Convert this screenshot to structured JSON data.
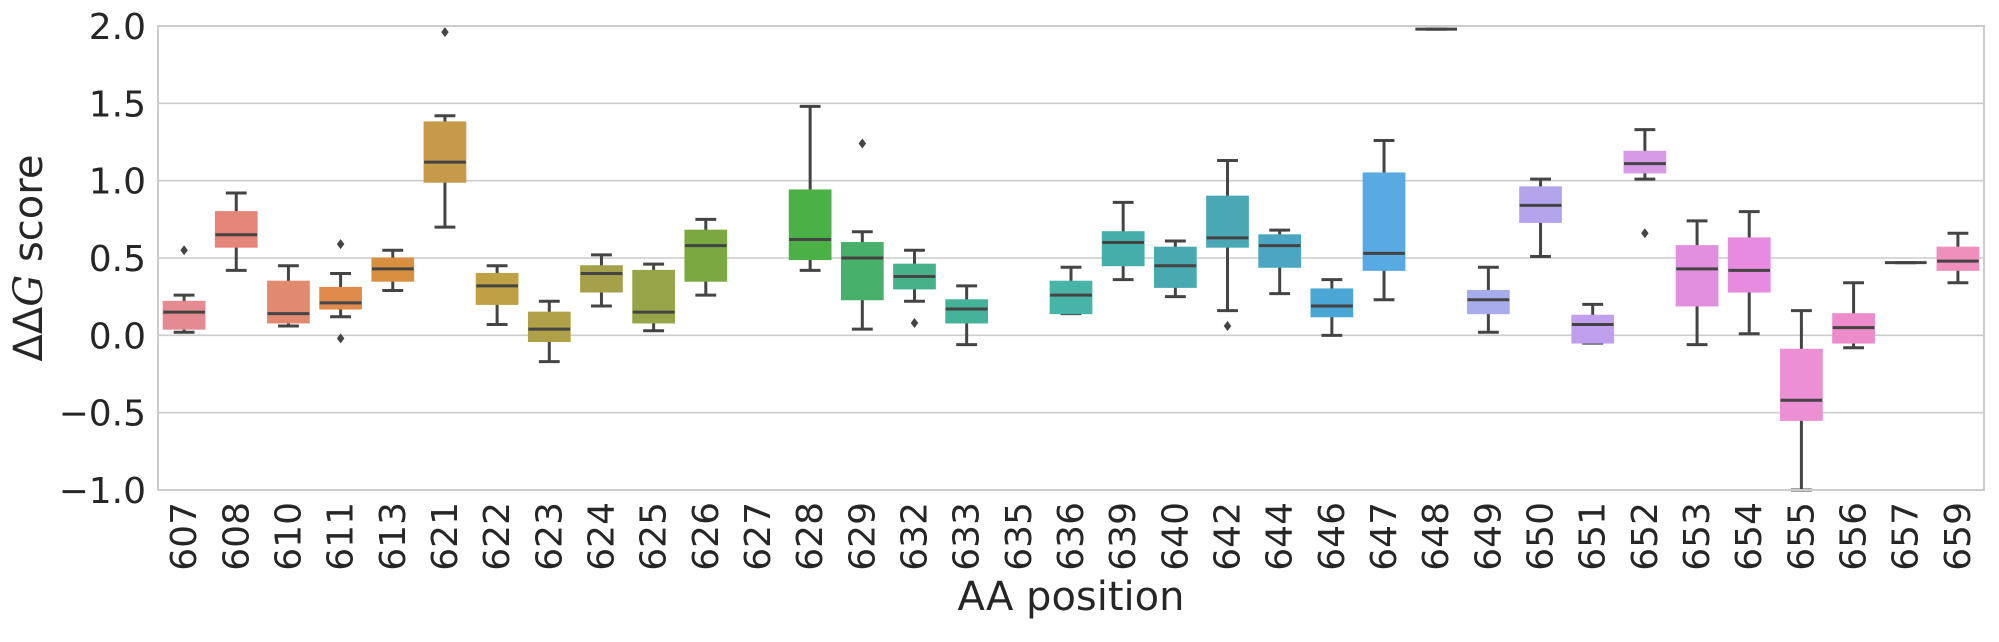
{
  "chart_data": {
    "type": "box",
    "title": "",
    "xlabel": "AA position",
    "ylabel": "ΔΔG score",
    "ylim": [
      -1.0,
      2.0
    ],
    "yticks": [
      2.0,
      1.5,
      1.0,
      0.5,
      0.0,
      -0.5,
      -1.0
    ],
    "ytick_labels": [
      "2.0",
      "1.5",
      "1.0",
      "0.5",
      "0.0",
      "−0.5",
      "−1.0"
    ],
    "grid": true,
    "categories": [
      "607",
      "608",
      "610",
      "611",
      "613",
      "621",
      "622",
      "623",
      "624",
      "625",
      "626",
      "627",
      "628",
      "629",
      "632",
      "633",
      "635",
      "636",
      "639",
      "640",
      "642",
      "644",
      "646",
      "647",
      "648",
      "649",
      "650",
      "651",
      "652",
      "653",
      "654",
      "655",
      "656",
      "657",
      "659"
    ],
    "boxes": [
      {
        "q1": 0.04,
        "median": 0.15,
        "q3": 0.22,
        "whislo": 0.02,
        "whishi": 0.26,
        "fliers": [
          0.55
        ],
        "color": "#e58a90"
      },
      {
        "q1": 0.57,
        "median": 0.65,
        "q3": 0.8,
        "whislo": 0.42,
        "whishi": 0.92,
        "fliers": [],
        "color": "#e5857a"
      },
      {
        "q1": 0.08,
        "median": 0.14,
        "q3": 0.35,
        "whislo": 0.06,
        "whishi": 0.45,
        "fliers": [],
        "color": "#e28a70"
      },
      {
        "q1": 0.17,
        "median": 0.21,
        "q3": 0.31,
        "whislo": 0.12,
        "whishi": 0.4,
        "fliers": [
          0.59,
          -0.02
        ],
        "color": "#e08a4c"
      },
      {
        "q1": 0.35,
        "median": 0.43,
        "q3": 0.5,
        "whislo": 0.29,
        "whishi": 0.55,
        "fliers": [],
        "color": "#d9903e"
      },
      {
        "q1": 0.99,
        "median": 1.12,
        "q3": 1.38,
        "whislo": 0.7,
        "whishi": 1.42,
        "fliers": [
          1.96
        ],
        "color": "#c69a4a"
      },
      {
        "q1": 0.2,
        "median": 0.32,
        "q3": 0.4,
        "whislo": 0.07,
        "whishi": 0.45,
        "fliers": [],
        "color": "#bfa045"
      },
      {
        "q1": -0.04,
        "median": 0.04,
        "q3": 0.15,
        "whislo": -0.17,
        "whishi": 0.22,
        "fliers": [],
        "color": "#b0a048"
      },
      {
        "q1": 0.28,
        "median": 0.4,
        "q3": 0.45,
        "whislo": 0.19,
        "whishi": 0.52,
        "fliers": [],
        "color": "#a6a04a"
      },
      {
        "q1": 0.08,
        "median": 0.15,
        "q3": 0.42,
        "whislo": 0.03,
        "whishi": 0.46,
        "fliers": [],
        "color": "#97a448"
      },
      {
        "q1": 0.35,
        "median": 0.58,
        "q3": 0.68,
        "whislo": 0.26,
        "whishi": 0.75,
        "fliers": [],
        "color": "#7ca841"
      },
      {
        "q1": null,
        "median": null,
        "q3": null,
        "whislo": null,
        "whishi": null,
        "fliers": [],
        "color": "#5fad45"
      },
      {
        "q1": 0.49,
        "median": 0.62,
        "q3": 0.94,
        "whislo": 0.42,
        "whishi": 1.48,
        "fliers": [],
        "color": "#4bb146"
      },
      {
        "q1": 0.23,
        "median": 0.5,
        "q3": 0.6,
        "whislo": 0.04,
        "whishi": 0.67,
        "fliers": [
          1.24
        ],
        "color": "#47b16c"
      },
      {
        "q1": 0.3,
        "median": 0.38,
        "q3": 0.46,
        "whislo": 0.22,
        "whishi": 0.55,
        "fliers": [
          0.08
        ],
        "color": "#47b28a"
      },
      {
        "q1": 0.08,
        "median": 0.17,
        "q3": 0.23,
        "whislo": -0.06,
        "whishi": 0.32,
        "fliers": [],
        "color": "#45b39a"
      },
      {
        "q1": null,
        "median": null,
        "q3": null,
        "whislo": null,
        "whishi": null,
        "fliers": [],
        "color": "#46b3a5"
      },
      {
        "q1": 0.14,
        "median": 0.26,
        "q3": 0.35,
        "whislo": 0.14,
        "whishi": 0.44,
        "fliers": [],
        "color": "#47b4a7"
      },
      {
        "q1": 0.45,
        "median": 0.6,
        "q3": 0.67,
        "whislo": 0.36,
        "whishi": 0.86,
        "fliers": [],
        "color": "#45aeab"
      },
      {
        "q1": 0.31,
        "median": 0.45,
        "q3": 0.57,
        "whislo": 0.25,
        "whishi": 0.61,
        "fliers": [],
        "color": "#48aab0"
      },
      {
        "q1": 0.57,
        "median": 0.63,
        "q3": 0.9,
        "whislo": 0.16,
        "whishi": 1.13,
        "fliers": [
          0.06
        ],
        "color": "#4aa8b5"
      },
      {
        "q1": 0.44,
        "median": 0.58,
        "q3": 0.65,
        "whislo": 0.27,
        "whishi": 0.68,
        "fliers": [],
        "color": "#4aa6c2"
      },
      {
        "q1": 0.12,
        "median": 0.19,
        "q3": 0.3,
        "whislo": 0.0,
        "whishi": 0.36,
        "fliers": [],
        "color": "#4aa6d5"
      },
      {
        "q1": 0.42,
        "median": 0.53,
        "q3": 1.05,
        "whislo": 0.23,
        "whishi": 1.26,
        "fliers": [],
        "color": "#59a9e3"
      },
      {
        "q1": 1.98,
        "median": 1.98,
        "q3": 1.98,
        "whislo": 1.98,
        "whishi": 1.98,
        "fliers": [],
        "color": "#8aa8ea"
      },
      {
        "q1": 0.14,
        "median": 0.23,
        "q3": 0.29,
        "whislo": 0.02,
        "whishi": 0.44,
        "fliers": [],
        "color": "#a6acec"
      },
      {
        "q1": 0.73,
        "median": 0.84,
        "q3": 0.96,
        "whislo": 0.51,
        "whishi": 1.01,
        "fliers": [],
        "color": "#b3a4ec"
      },
      {
        "q1": -0.05,
        "median": 0.07,
        "q3": 0.13,
        "whislo": -0.05,
        "whishi": 0.2,
        "fliers": [],
        "color": "#c0a0ee"
      },
      {
        "q1": 1.05,
        "median": 1.11,
        "q3": 1.19,
        "whislo": 1.01,
        "whishi": 1.33,
        "fliers": [
          0.66
        ],
        "color": "#d79ae6"
      },
      {
        "q1": 0.19,
        "median": 0.43,
        "q3": 0.58,
        "whislo": -0.06,
        "whishi": 0.74,
        "fliers": [],
        "color": "#e28fe0"
      },
      {
        "q1": 0.28,
        "median": 0.42,
        "q3": 0.63,
        "whislo": 0.01,
        "whishi": 0.8,
        "fliers": [],
        "color": "#e78be0"
      },
      {
        "q1": -0.55,
        "median": -0.42,
        "q3": -0.09,
        "whislo": -1.0,
        "whishi": 0.16,
        "fliers": [],
        "color": "#ec8fd4"
      },
      {
        "q1": -0.05,
        "median": 0.05,
        "q3": 0.14,
        "whislo": -0.08,
        "whishi": 0.34,
        "fliers": [],
        "color": "#ec8ccb"
      },
      {
        "q1": 0.47,
        "median": 0.47,
        "q3": 0.47,
        "whislo": 0.47,
        "whishi": 0.47,
        "fliers": [],
        "color": "#ec8dbf"
      },
      {
        "q1": 0.42,
        "median": 0.48,
        "q3": 0.57,
        "whislo": 0.34,
        "whishi": 0.66,
        "fliers": [],
        "color": "#ee90bb"
      }
    ]
  }
}
